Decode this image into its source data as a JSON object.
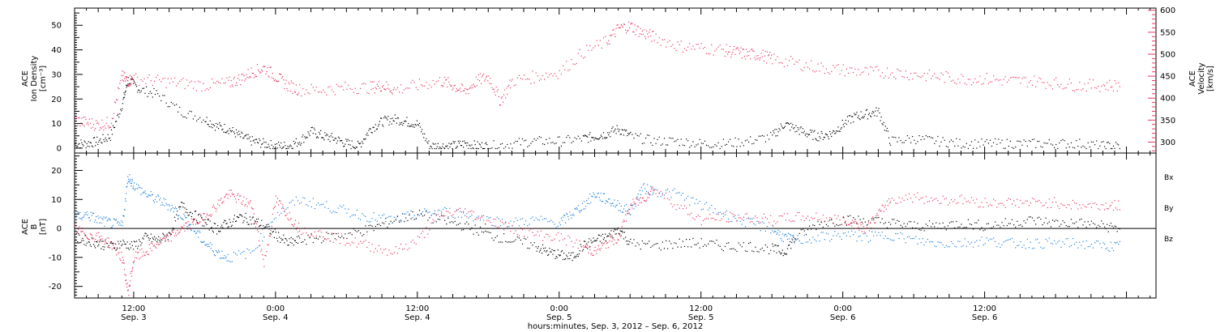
{
  "colors": {
    "black": "#000000",
    "red": "#e8365f",
    "blue": "#1e7fdc"
  },
  "xaxis": {
    "title": "hours:minutes, Sep.  3, 2012 – Sep.  6, 2012",
    "range_hours": [
      7.0,
      98.5
    ],
    "ticks": [
      {
        "hour": 12,
        "time": "12:00",
        "day": "Sep. 3"
      },
      {
        "hour": 24,
        "time": "0:00",
        "day": "Sep. 4"
      },
      {
        "hour": 36,
        "time": "12:00",
        "day": "Sep. 4"
      },
      {
        "hour": 48,
        "time": "0:00",
        "day": "Sep. 5"
      },
      {
        "hour": 60,
        "time": "12:00",
        "day": "Sep. 5"
      },
      {
        "hour": 72,
        "time": "0:00",
        "day": "Sep. 6"
      },
      {
        "hour": 84,
        "time": "12:00",
        "day": "Sep. 6"
      }
    ]
  },
  "chart_data": [
    {
      "type": "scatter",
      "left_label_lines": [
        "ACE",
        "Ion Density",
        "[cm⁻³]"
      ],
      "right_label_lines": [
        "ACE",
        "Velocity",
        "[km/s]"
      ],
      "ylim_left": [
        -2,
        57
      ],
      "yticks_left": [
        0,
        10,
        20,
        30,
        40,
        50
      ],
      "ylim_right": [
        275,
        605
      ],
      "yticks_right": [
        300,
        350,
        400,
        450,
        500,
        550,
        600
      ],
      "series": [
        {
          "axis": "left",
          "color": "#000000",
          "x": [
            7.0,
            8.0,
            9.0,
            10.0,
            11.0,
            11.5,
            12.5,
            14,
            16,
            18,
            19,
            20,
            21,
            22,
            23,
            24,
            25,
            26,
            27,
            28,
            29,
            30,
            31,
            32,
            33,
            34,
            35,
            36,
            37,
            38,
            39,
            40,
            41,
            42,
            44,
            46,
            48,
            50,
            51,
            52,
            53,
            54,
            56,
            58,
            60,
            62,
            64,
            66,
            67,
            68,
            69,
            70,
            71,
            72,
            73,
            74,
            75,
            76,
            78,
            80,
            82,
            84,
            86,
            88,
            90,
            92,
            94,
            95.5
          ],
          "y": [
            2,
            2,
            3,
            5,
            18,
            28,
            24,
            22,
            15,
            12,
            9,
            8,
            5,
            3,
            2,
            1,
            1,
            3,
            7,
            5,
            4,
            2,
            1,
            8,
            11,
            12,
            11,
            10,
            1,
            1,
            1,
            2,
            1,
            1,
            2,
            3,
            3,
            4,
            5,
            6,
            8,
            5,
            3,
            3,
            2,
            2,
            3,
            5,
            10,
            8,
            6,
            5,
            6,
            10,
            13,
            14,
            15,
            3,
            4,
            3,
            2,
            2,
            2,
            2,
            2,
            2,
            1,
            1
          ]
        },
        {
          "axis": "right",
          "color": "#e8365f",
          "x": [
            7.0,
            8.0,
            9.0,
            10.0,
            11.0,
            11.5,
            12,
            14,
            16,
            18,
            20,
            21,
            22,
            23,
            24,
            25,
            26,
            28,
            30,
            32,
            33,
            34,
            36,
            38,
            39,
            40,
            41,
            42,
            43,
            44,
            46,
            48,
            50,
            52,
            53,
            54,
            55,
            56,
            58,
            60,
            62,
            63,
            64,
            65,
            66,
            68,
            70,
            72,
            74,
            76,
            78,
            80,
            82,
            84,
            86,
            88,
            90,
            92,
            94,
            95.5
          ],
          "y": [
            350,
            345,
            340,
            345,
            450,
            440,
            445,
            440,
            435,
            430,
            435,
            445,
            460,
            470,
            450,
            430,
            420,
            420,
            425,
            425,
            430,
            420,
            430,
            440,
            430,
            415,
            440,
            450,
            395,
            440,
            450,
            460,
            505,
            530,
            560,
            565,
            550,
            540,
            520,
            515,
            510,
            505,
            500,
            500,
            490,
            480,
            470,
            465,
            460,
            460,
            455,
            450,
            445,
            445,
            440,
            440,
            435,
            430,
            430,
            430
          ]
        }
      ]
    },
    {
      "type": "scatter",
      "left_label_lines": [
        "ACE",
        "B",
        "[nT]"
      ],
      "ylim": [
        -24,
        26
      ],
      "yticks": [
        -20,
        -10,
        0,
        10,
        20
      ],
      "zero_line": true,
      "legend": [
        "Bx",
        "By",
        "Bz"
      ],
      "series": [
        {
          "name": "Bx",
          "color": "#000000",
          "x": [
            7.0,
            8.0,
            9.0,
            10.0,
            11.0,
            12,
            13,
            14,
            15,
            16,
            17,
            18,
            19,
            20,
            21,
            22,
            23,
            24,
            25,
            26,
            28,
            30,
            32,
            34,
            36,
            38,
            40,
            42,
            44,
            46,
            47,
            48,
            49,
            50,
            51,
            52,
            53,
            54,
            56,
            58,
            60,
            62,
            64,
            66,
            67,
            68,
            70,
            72,
            74,
            76,
            78,
            80,
            82,
            84,
            86,
            88,
            90,
            92,
            94,
            95.5
          ],
          "y": [
            -3,
            -4,
            -5,
            -6,
            -5,
            -6,
            -3,
            -4,
            -2,
            8,
            5,
            2,
            0,
            2,
            4,
            3,
            1,
            -2,
            -5,
            -4,
            -3,
            -2,
            0,
            3,
            5,
            3,
            1,
            -2,
            -4,
            -6,
            -8,
            -9,
            -10,
            -6,
            -4,
            -3,
            0,
            -5,
            -6,
            -5,
            -5,
            -6,
            -6,
            -7,
            -8,
            -3,
            2,
            3,
            3,
            2,
            1,
            1,
            2,
            1,
            2,
            3,
            2,
            2,
            1,
            0
          ]
        },
        {
          "name": "By",
          "color": "#1e7fdc",
          "x": [
            7.0,
            8.0,
            9.0,
            10.0,
            11.0,
            11.5,
            12,
            13,
            14,
            15,
            16,
            17,
            18,
            19,
            20,
            22,
            24,
            26,
            28,
            30,
            32,
            34,
            36,
            38,
            40,
            42,
            44,
            46,
            48,
            49,
            50,
            51,
            52,
            53,
            54,
            55,
            56,
            58,
            60,
            62,
            64,
            66,
            67,
            68,
            70,
            72,
            74,
            76,
            78,
            80,
            82,
            84,
            86,
            88,
            90,
            92,
            94,
            95.5
          ],
          "y": [
            4,
            5,
            3,
            2,
            1,
            18,
            15,
            12,
            10,
            8,
            5,
            0,
            -5,
            -8,
            -10,
            -8,
            5,
            10,
            8,
            6,
            4,
            3,
            5,
            6,
            5,
            3,
            2,
            3,
            2,
            5,
            8,
            12,
            10,
            8,
            6,
            14,
            13,
            12,
            8,
            5,
            2,
            0,
            -3,
            -4,
            -3,
            -2,
            -3,
            -2,
            -4,
            -5,
            -5,
            -4,
            -5,
            -5,
            -5,
            -5,
            -6,
            -6
          ]
        },
        {
          "name": "Bz",
          "color": "#e8365f",
          "x": [
            7.0,
            8.0,
            9.0,
            10.0,
            11.0,
            11.5,
            12,
            13,
            14,
            15,
            16,
            17,
            18,
            19,
            20,
            21,
            22,
            23,
            24,
            25,
            26,
            28,
            30,
            32,
            34,
            36,
            38,
            40,
            42,
            44,
            46,
            48,
            50,
            51,
            52,
            53,
            54,
            55,
            56,
            58,
            60,
            62,
            64,
            66,
            68,
            70,
            72,
            73,
            74,
            75,
            76,
            78,
            80,
            82,
            84,
            86,
            88,
            90,
            92,
            94,
            95.5
          ],
          "y": [
            0,
            -2,
            -3,
            -5,
            -10,
            -22,
            -10,
            -8,
            -5,
            -3,
            0,
            2,
            4,
            8,
            12,
            10,
            8,
            -12,
            10,
            5,
            0,
            -2,
            -4,
            -6,
            -8,
            -4,
            5,
            6,
            3,
            0,
            -2,
            -3,
            -6,
            -8,
            -5,
            -3,
            8,
            10,
            14,
            8,
            3,
            4,
            4,
            3,
            4,
            4,
            3,
            2,
            0,
            5,
            10,
            11,
            10,
            10,
            9,
            9,
            9,
            9,
            8,
            8,
            8
          ]
        }
      ]
    }
  ]
}
